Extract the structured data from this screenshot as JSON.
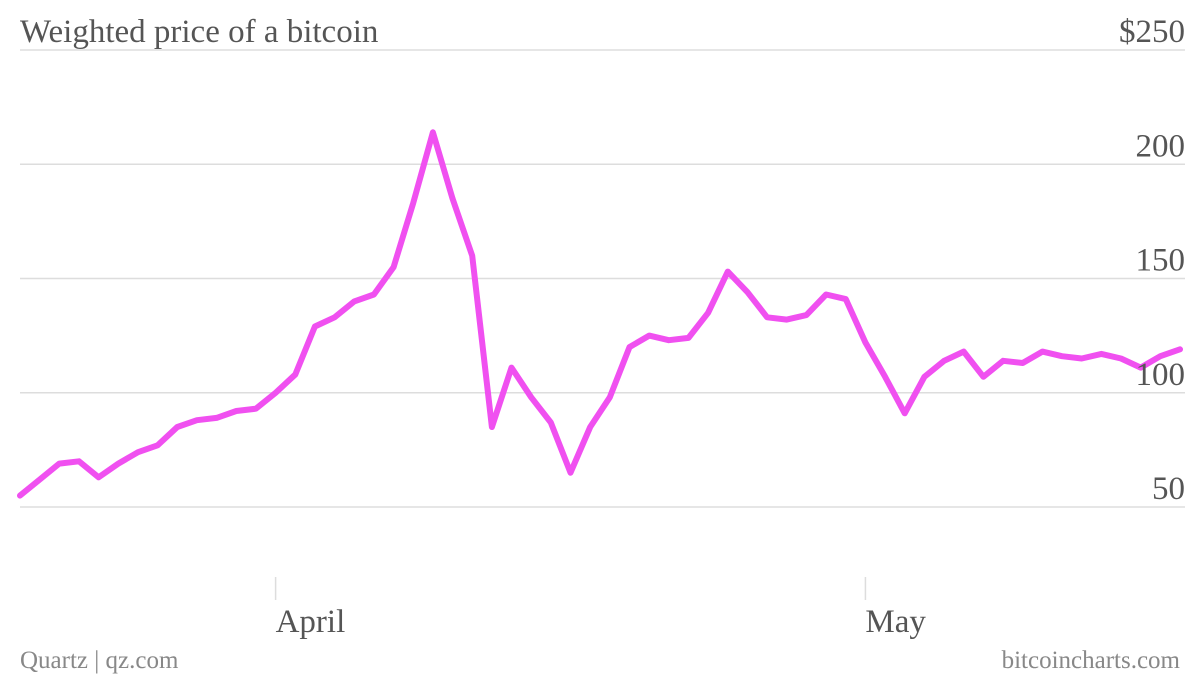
{
  "chart_data": {
    "type": "line",
    "title": "Weighted price of a bitcoin",
    "xlabel": "",
    "ylabel": "",
    "ylim": [
      0,
      250
    ],
    "y_ticks": [
      50,
      100,
      150,
      200,
      250
    ],
    "y_tick_labels": [
      "50",
      "100",
      "150",
      "200",
      "$250"
    ],
    "x_ticks": [
      {
        "label": "April",
        "date": "2013-04-01"
      },
      {
        "label": "May",
        "date": "2013-05-01"
      }
    ],
    "grid": true,
    "line_color": "#f050f0",
    "series": [
      {
        "x": [
          "2013-03-19",
          "2013-03-20",
          "2013-03-21",
          "2013-03-22",
          "2013-03-23",
          "2013-03-24",
          "2013-03-25",
          "2013-03-26",
          "2013-03-27",
          "2013-03-28",
          "2013-03-29",
          "2013-03-30",
          "2013-03-31",
          "2013-04-01",
          "2013-04-02",
          "2013-04-03",
          "2013-04-04",
          "2013-04-05",
          "2013-04-06",
          "2013-04-07",
          "2013-04-08",
          "2013-04-09",
          "2013-04-10",
          "2013-04-11",
          "2013-04-12",
          "2013-04-13",
          "2013-04-14",
          "2013-04-15",
          "2013-04-16",
          "2013-04-17",
          "2013-04-18",
          "2013-04-19",
          "2013-04-20",
          "2013-04-21",
          "2013-04-22",
          "2013-04-23",
          "2013-04-24",
          "2013-04-25",
          "2013-04-26",
          "2013-04-27",
          "2013-04-28",
          "2013-04-29",
          "2013-04-30",
          "2013-05-01",
          "2013-05-02",
          "2013-05-03",
          "2013-05-04",
          "2013-05-05",
          "2013-05-06",
          "2013-05-07",
          "2013-05-08",
          "2013-05-09",
          "2013-05-10",
          "2013-05-11",
          "2013-05-12",
          "2013-05-13",
          "2013-05-14",
          "2013-05-15",
          "2013-05-16",
          "2013-05-17"
        ],
        "values": [
          55,
          62,
          69,
          70,
          63,
          69,
          74,
          77,
          85,
          88,
          89,
          92,
          93,
          100,
          108,
          129,
          133,
          140,
          143,
          155,
          183,
          214,
          185,
          160,
          85,
          111,
          98,
          87,
          65,
          85,
          98,
          120,
          125,
          123,
          124,
          135,
          153,
          144,
          133,
          132,
          134,
          143,
          141,
          122,
          107,
          91,
          107,
          114,
          118,
          107,
          114,
          113,
          118,
          116,
          115,
          117,
          115,
          111,
          116,
          119
        ]
      }
    ]
  },
  "footer": {
    "source_left": "Quartz | qz.com",
    "source_right": "bitcoincharts.com"
  }
}
